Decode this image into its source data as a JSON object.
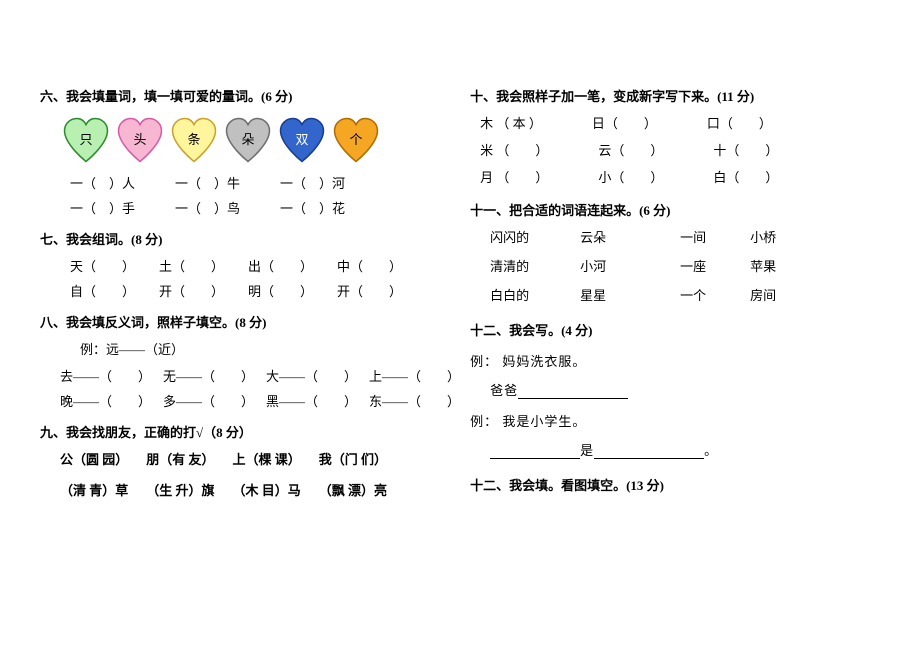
{
  "left": {
    "sec6": {
      "title": "六、我会填量词，填一填可爱的量词。(6 分)",
      "hearts": [
        {
          "label": "只",
          "fill": "#b7f0b0",
          "stroke": "#2e8b2e"
        },
        {
          "label": "头",
          "fill": "#f7b6d2",
          "stroke": "#d95ba6"
        },
        {
          "label": "条",
          "fill": "#fff59d",
          "stroke": "#c9a227"
        },
        {
          "label": "朵",
          "fill": "#c0c0c0",
          "stroke": "#6e6e6e"
        },
        {
          "label": "双",
          "fill": "#3366cc",
          "stroke": "#1a3d8f",
          "text": "#ffffff"
        },
        {
          "label": "个",
          "fill": "#f5a623",
          "stroke": "#b06d00"
        }
      ],
      "row1": [
        "一（　）人",
        "一（　）牛",
        "一（　）河"
      ],
      "row2": [
        "一（　）手",
        "一（　）鸟",
        "一（　）花"
      ]
    },
    "sec7": {
      "title": "七、我会组词。(8 分)",
      "row1": [
        "天（　　）",
        "土（　　）",
        "出（　　）",
        "中（　　）"
      ],
      "row2": [
        "自（　　）",
        "开（　　）",
        "明（　　）",
        "开（　　）"
      ]
    },
    "sec8": {
      "title": "八、我会填反义词，照样子填空。(8 分)",
      "example": "例：远——（近）",
      "row1": [
        "去——（　　）",
        "无——（　　）",
        "大——（　　）",
        "上——（　　）"
      ],
      "row2": [
        "晚——（　　）",
        "多——（　　）",
        "黑——（　　）",
        "东——（　　）"
      ]
    },
    "sec9": {
      "title": "九、我会找朋友，正确的打√（8 分）",
      "row1": [
        "公（圆 园）",
        "朋（有 友）",
        "上（棵 课）",
        "我（门 们）"
      ],
      "row2": [
        "（清 青）草",
        "（生 升）旗",
        "（木 目）马",
        "（飘 漂）亮"
      ]
    }
  },
  "right": {
    "sec10": {
      "title": "十、我会照样子加一笔，变成新字写下来。(11 分)",
      "rows": [
        [
          "木 （ 本 ）",
          "日（　　）",
          "口（　　）"
        ],
        [
          "米 （　　）",
          "云（　　）",
          "十（　　）"
        ],
        [
          "月 （　　）",
          "小（　　）",
          "白（　　）"
        ]
      ]
    },
    "sec11": {
      "title": "十一、把合适的词语连起来。(6 分)",
      "rows": [
        [
          "闪闪的",
          "云朵",
          "一间",
          "小桥"
        ],
        [
          "清清的",
          "小河",
          "一座",
          "苹果"
        ],
        [
          "白白的",
          "星星",
          "一个",
          "房间"
        ]
      ]
    },
    "sec12": {
      "title": "十二、我会写。(4 分)",
      "ex1_label": "例：",
      "ex1_text": "妈妈洗衣服。",
      "dad": "爸爸",
      "ex2_label": "例：",
      "ex2_text": "我是小学生。",
      "is_char": "是",
      "period": "。"
    },
    "sec13": {
      "title": "十二、我会填。看图填空。(13 分)"
    }
  }
}
